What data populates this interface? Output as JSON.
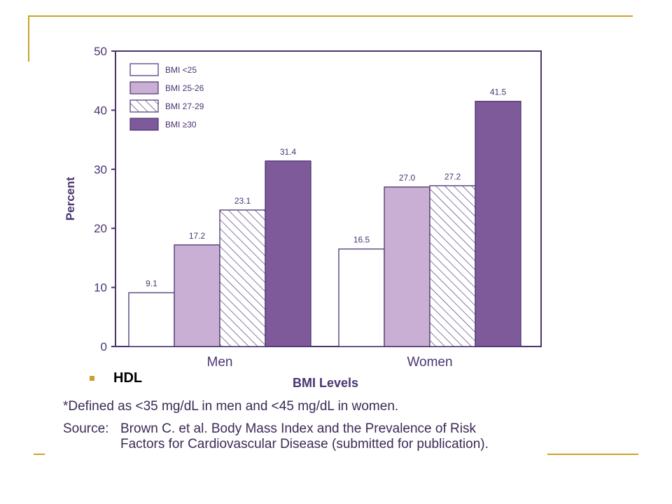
{
  "slide": {
    "bullet_text": "HDL",
    "accent_color": "#c9a227"
  },
  "chart_data": {
    "type": "bar",
    "categories": [
      "Men",
      "Women"
    ],
    "series": [
      {
        "name": "BMI <25",
        "values": [
          9.1,
          16.5
        ],
        "color": "#ffffff",
        "pattern": "solid"
      },
      {
        "name": "BMI 25-26",
        "values": [
          17.2,
          27.0
        ],
        "color": "#c9afd3",
        "pattern": "solid"
      },
      {
        "name": "BMI 27-29",
        "values": [
          23.1,
          27.2
        ],
        "color": "#ffffff",
        "pattern": "hatch"
      },
      {
        "name": "BMI ≥30",
        "values": [
          31.4,
          41.5
        ],
        "color": "#7e5a9b",
        "pattern": "solid"
      }
    ],
    "data_labels": [
      [
        "9.1",
        "16.5"
      ],
      [
        "17.2",
        "27.0"
      ],
      [
        "23.1",
        "27.2"
      ],
      [
        "31.4",
        "41.5"
      ]
    ],
    "xlabel": "BMI Levels",
    "ylabel": "Percent",
    "ylim": [
      0,
      50
    ],
    "yticks": [
      0,
      10,
      20,
      30,
      40,
      50
    ],
    "grid": false,
    "legend": "top-left",
    "axis_color": "#4a3470"
  },
  "footnotes": {
    "definition": "*Defined as <35 mg/dL in men and <45 mg/dL in women.",
    "source_label": "Source:",
    "source_line1": "Brown C. et al. Body Mass Index and the Prevalence of Risk",
    "source_line2": "Factors for Cardiovascular Disease (submitted for publication)."
  }
}
